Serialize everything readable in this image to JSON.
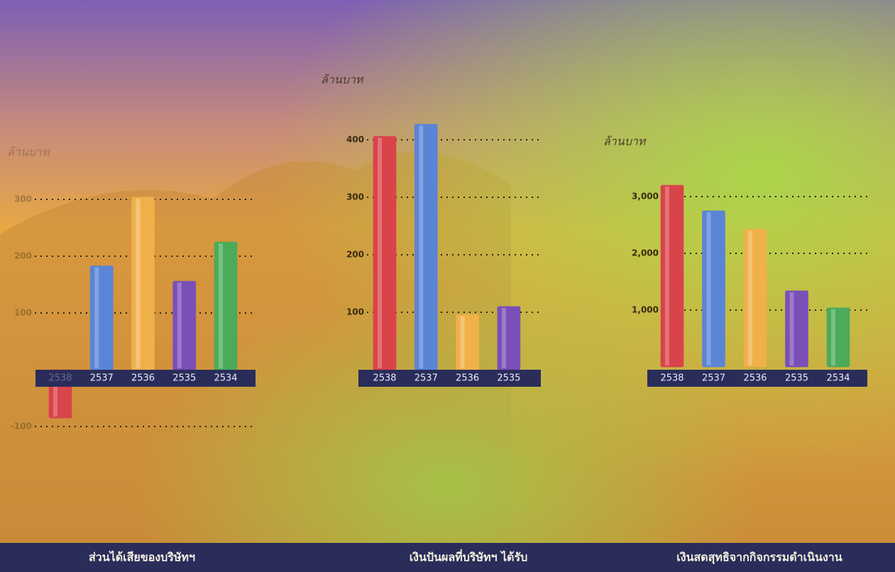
{
  "chart_data": [
    {
      "type": "bar",
      "title": "ส่วนได้เสียของบริษัทฯ",
      "y_label": "ล้านบาท",
      "categories": [
        "2538",
        "2537",
        "2536",
        "2535",
        "2534"
      ],
      "values": [
        -85,
        183,
        304,
        156,
        225
      ],
      "colors": [
        "#d9434a",
        "#5a84d6",
        "#f0b04a",
        "#7a4fb8",
        "#4bab5a"
      ],
      "ylim": [
        -100,
        300
      ],
      "yticks": [
        -100,
        100,
        200,
        300
      ],
      "grid": true
    },
    {
      "type": "bar",
      "title": "เงินปันผลที่บริษัทฯ ได้รับ",
      "y_label": "ล้านบาท",
      "categories": [
        "2538",
        "2537",
        "2536",
        "2535"
      ],
      "values": [
        406,
        427,
        96,
        110
      ],
      "colors": [
        "#d9434a",
        "#5a84d6",
        "#f0b04a",
        "#7a4fb8"
      ],
      "ylim": [
        0,
        400
      ],
      "yticks": [
        100,
        200,
        300,
        400
      ],
      "grid": true
    },
    {
      "type": "bar",
      "title": "เงินสดสุทธิจากกิจกรรมดำเนินงาน",
      "y_label": "ล้านบาท",
      "categories": [
        "2538",
        "2537",
        "2536",
        "2535",
        "2534"
      ],
      "values": [
        3200,
        2750,
        2425,
        1340,
        1040
      ],
      "colors": [
        "#d9434a",
        "#5a84d6",
        "#f0b04a",
        "#7a4fb8",
        "#4bab5a"
      ],
      "ylim": [
        0,
        3000
      ],
      "yticks": [
        {
          "value": 1000,
          "label": "1,000"
        },
        {
          "value": 2000,
          "label": "2,000"
        },
        {
          "value": 3000,
          "label": "3,000"
        }
      ],
      "grid": true
    }
  ]
}
